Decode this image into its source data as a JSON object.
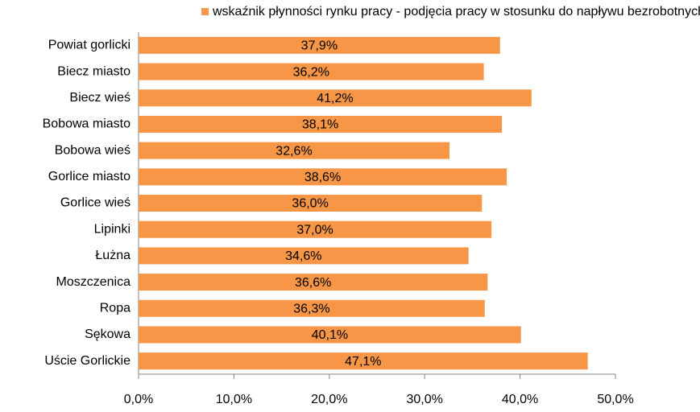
{
  "chart_data": {
    "type": "bar",
    "orientation": "horizontal",
    "legend": "wskaźnik płynności rynku pracy - podjęcia pracy w stosunku do napływu bezrobotnych",
    "categories": [
      "Powiat gorlicki",
      "Biecz miasto",
      "Biecz wieś",
      "Bobowa miasto",
      "Bobowa wieś",
      "Gorlice miasto",
      "Gorlice wieś",
      "Lipinki",
      "Łużna",
      "Moszczenica",
      "Ropa",
      "Sękowa",
      "Uście Gorlickie"
    ],
    "values": [
      37.9,
      36.2,
      41.2,
      38.1,
      32.6,
      38.6,
      36.0,
      37.0,
      34.6,
      36.6,
      36.3,
      40.1,
      47.1
    ],
    "value_labels": [
      "37,9%",
      "36,2%",
      "41,2%",
      "38,1%",
      "32,6%",
      "38,6%",
      "36,0%",
      "37,0%",
      "34,6%",
      "36,6%",
      "36,3%",
      "40,1%",
      "47,1%"
    ],
    "color": "#f79646",
    "xlim": [
      0,
      50
    ],
    "xticks": [
      {
        "value": 0,
        "label": "0,0%"
      },
      {
        "value": 10,
        "label": "10,0%"
      },
      {
        "value": 20,
        "label": "20,0%"
      },
      {
        "value": 30,
        "label": "30,0%"
      },
      {
        "value": 40,
        "label": "40,0%"
      },
      {
        "value": 50,
        "label": "50,0%"
      }
    ],
    "grid": false
  }
}
